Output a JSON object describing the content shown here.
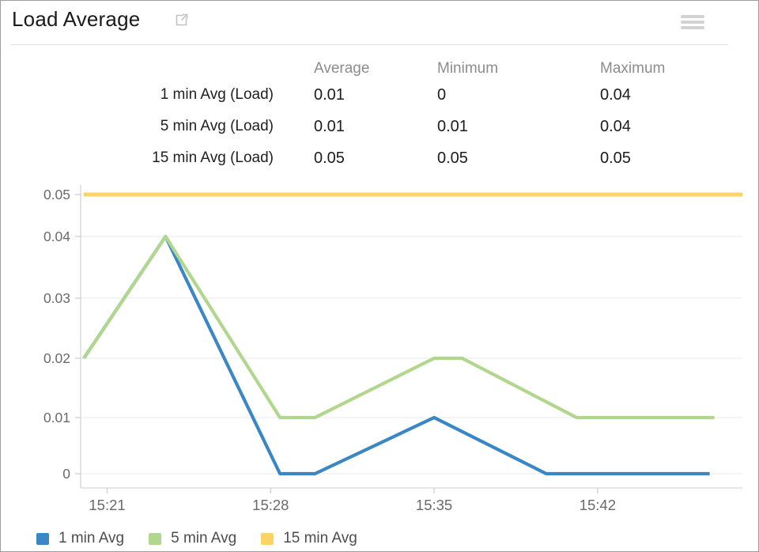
{
  "header": {
    "title": "Load Average",
    "icons": {
      "external": "external-link-icon",
      "menu": "hamburger-menu-icon"
    }
  },
  "stats_table": {
    "columns": [
      "Average",
      "Minimum",
      "Maximum"
    ],
    "rows": [
      {
        "label": "1 min Avg (Load)",
        "average": "0.01",
        "minimum": "0",
        "maximum": "0.04"
      },
      {
        "label": "5 min Avg (Load)",
        "average": "0.01",
        "minimum": "0.01",
        "maximum": "0.04"
      },
      {
        "label": "15 min Avg (Load)",
        "average": "0.05",
        "minimum": "0.05",
        "maximum": "0.05"
      }
    ]
  },
  "chart_data": {
    "type": "line",
    "title": "",
    "xlabel": "",
    "ylabel": "",
    "grid": true,
    "legend_position": "bottom-left",
    "x_axis": {
      "unit": "minutes since 15:20",
      "t_range": [
        0,
        28.2
      ],
      "tick_t": [
        1,
        8,
        15,
        22
      ],
      "tick_labels": [
        "15:21",
        "15:28",
        "15:35",
        "15:42"
      ]
    },
    "y_axis": {
      "range": [
        0,
        0.05
      ],
      "tick_values": [
        0,
        0.01,
        0.02,
        0.03,
        0.04,
        0.05
      ],
      "tick_labels": [
        "0",
        "0.01",
        "0.02",
        "0.03",
        "0.04",
        "0.05"
      ]
    },
    "series": [
      {
        "name": "1 min Avg",
        "color": "#3b86c4",
        "points": [
          [
            0,
            0.02
          ],
          [
            3.5,
            0.04
          ],
          [
            8.4,
            0
          ],
          [
            9.9,
            0
          ],
          [
            15,
            0.01
          ],
          [
            19.8,
            0
          ],
          [
            26.8,
            0
          ]
        ]
      },
      {
        "name": "5 min Avg",
        "color": "#b1d68d",
        "points": [
          [
            0,
            0.02
          ],
          [
            3.5,
            0.04
          ],
          [
            8.4,
            0.01
          ],
          [
            9.9,
            0.01
          ],
          [
            15,
            0.02
          ],
          [
            16.2,
            0.02
          ],
          [
            21.1,
            0.01
          ],
          [
            27,
            0.01
          ]
        ]
      },
      {
        "name": "15 min Avg",
        "color": "#fbd465",
        "points": [
          [
            0,
            0.05
          ],
          [
            28.2,
            0.05
          ]
        ]
      }
    ]
  },
  "legend": {
    "items": [
      {
        "label": "1 min Avg",
        "color": "#3b86c4"
      },
      {
        "label": "5 min Avg",
        "color": "#b1d68d"
      },
      {
        "label": "15 min Avg",
        "color": "#fbd465"
      }
    ]
  },
  "style_colors": {
    "grid": "#ededed",
    "axis": "#d6d6d6",
    "tick": "#cfcfcf",
    "tick_text": "#6a6a6a"
  }
}
